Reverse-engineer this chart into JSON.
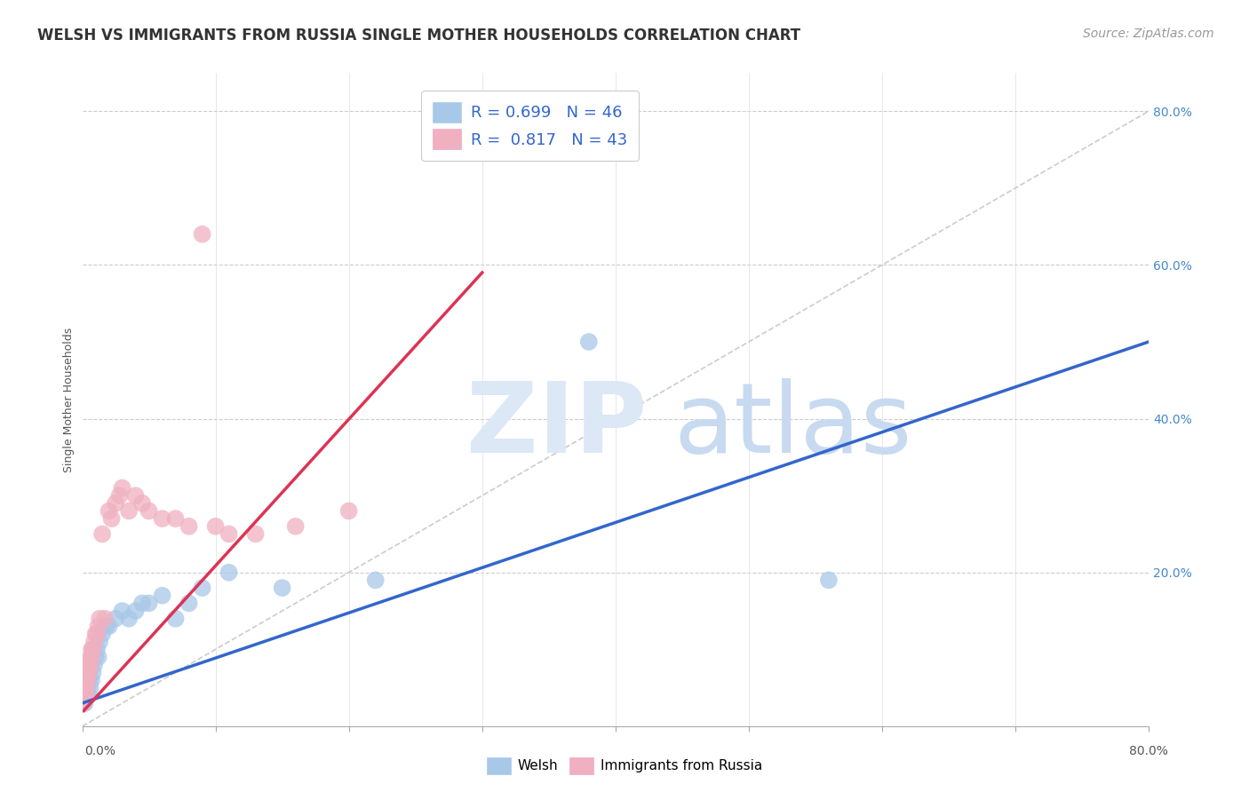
{
  "title": "WELSH VS IMMIGRANTS FROM RUSSIA SINGLE MOTHER HOUSEHOLDS CORRELATION CHART",
  "source": "Source: ZipAtlas.com",
  "ylabel": "Single Mother Households",
  "xlim": [
    0,
    0.8
  ],
  "ylim": [
    0,
    0.85
  ],
  "ytick_vals": [
    0.0,
    0.2,
    0.4,
    0.6,
    0.8
  ],
  "ytick_labels": [
    "",
    "20.0%",
    "40.0%",
    "60.0%",
    "80.0%"
  ],
  "legend_label1": "Welsh",
  "legend_label2": "Immigrants from Russia",
  "blue_color": "#a8c8e8",
  "pink_color": "#f0b0c0",
  "blue_line_color": "#3366cc",
  "pink_line_color": "#dd3355",
  "diag_color": "#cccccc",
  "background_color": "#ffffff",
  "watermark_zip_color": "#dce8f5",
  "watermark_atlas_color": "#c8daf0",
  "blue_line_x": [
    0.0,
    0.8
  ],
  "blue_line_y": [
    0.03,
    0.5
  ],
  "pink_line_x": [
    0.001,
    0.3
  ],
  "pink_line_y": [
    0.02,
    0.59
  ],
  "blue_scatter_x": [
    0.001,
    0.001,
    0.001,
    0.002,
    0.002,
    0.002,
    0.002,
    0.003,
    0.003,
    0.003,
    0.003,
    0.004,
    0.004,
    0.004,
    0.005,
    0.005,
    0.005,
    0.006,
    0.006,
    0.007,
    0.007,
    0.008,
    0.008,
    0.009,
    0.01,
    0.011,
    0.012,
    0.013,
    0.015,
    0.018,
    0.02,
    0.025,
    0.03,
    0.035,
    0.04,
    0.045,
    0.05,
    0.06,
    0.07,
    0.08,
    0.09,
    0.11,
    0.15,
    0.22,
    0.38,
    0.56
  ],
  "blue_scatter_y": [
    0.03,
    0.04,
    0.05,
    0.03,
    0.04,
    0.05,
    0.06,
    0.04,
    0.05,
    0.06,
    0.07,
    0.05,
    0.06,
    0.07,
    0.04,
    0.06,
    0.07,
    0.05,
    0.08,
    0.06,
    0.09,
    0.07,
    0.1,
    0.08,
    0.09,
    0.1,
    0.09,
    0.11,
    0.12,
    0.13,
    0.13,
    0.14,
    0.15,
    0.14,
    0.15,
    0.16,
    0.16,
    0.17,
    0.14,
    0.16,
    0.18,
    0.2,
    0.18,
    0.19,
    0.5,
    0.19
  ],
  "pink_scatter_x": [
    0.001,
    0.001,
    0.001,
    0.002,
    0.002,
    0.002,
    0.003,
    0.003,
    0.003,
    0.004,
    0.004,
    0.005,
    0.005,
    0.006,
    0.006,
    0.007,
    0.007,
    0.008,
    0.009,
    0.01,
    0.011,
    0.012,
    0.013,
    0.015,
    0.017,
    0.02,
    0.022,
    0.025,
    0.028,
    0.03,
    0.035,
    0.04,
    0.045,
    0.05,
    0.06,
    0.07,
    0.08,
    0.09,
    0.1,
    0.11,
    0.13,
    0.16,
    0.2
  ],
  "pink_scatter_y": [
    0.03,
    0.04,
    0.05,
    0.04,
    0.05,
    0.06,
    0.05,
    0.06,
    0.07,
    0.06,
    0.07,
    0.07,
    0.08,
    0.08,
    0.09,
    0.09,
    0.1,
    0.1,
    0.11,
    0.12,
    0.12,
    0.13,
    0.14,
    0.25,
    0.14,
    0.28,
    0.27,
    0.29,
    0.3,
    0.31,
    0.28,
    0.3,
    0.29,
    0.28,
    0.27,
    0.27,
    0.26,
    0.64,
    0.26,
    0.25,
    0.25,
    0.26,
    0.28
  ],
  "title_fontsize": 12,
  "axis_label_fontsize": 9,
  "tick_fontsize": 10,
  "legend_fontsize": 13,
  "source_fontsize": 10
}
